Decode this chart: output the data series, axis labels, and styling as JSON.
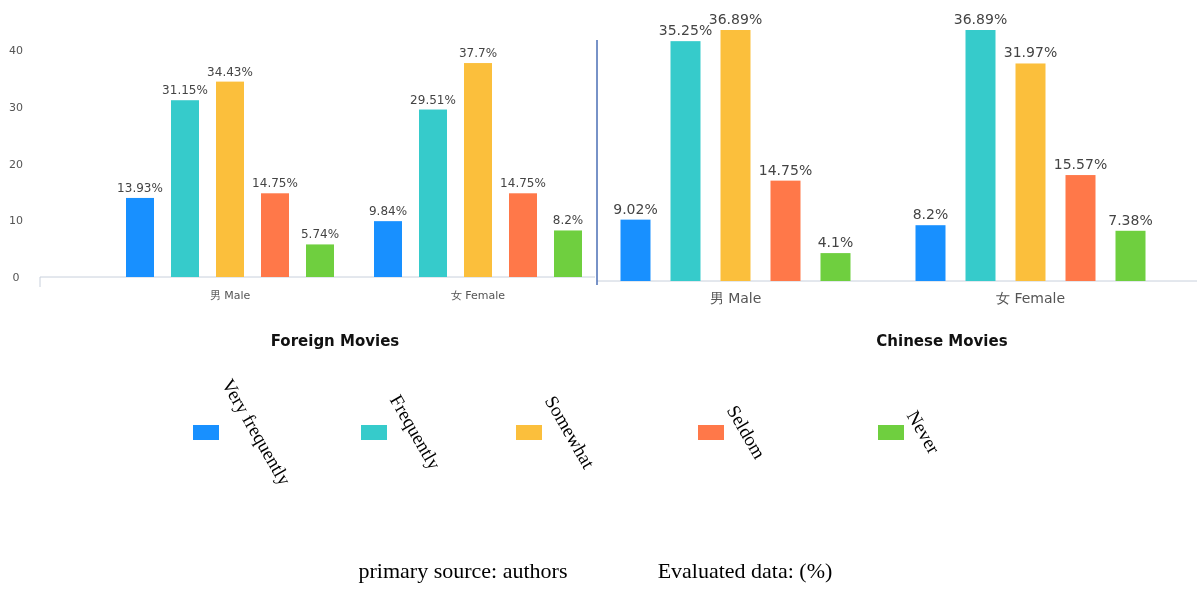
{
  "chart_data": [
    {
      "type": "bar",
      "title": "Foreign Movies",
      "categories": [
        "男 Male",
        "女 Female"
      ],
      "ylim": [
        0,
        40
      ],
      "yticks": [
        0,
        10,
        20,
        30,
        40
      ],
      "grid": false,
      "legend": "bottom",
      "series": [
        {
          "name": "Very frequently",
          "color": "#1890ff",
          "values": [
            13.93,
            9.84
          ],
          "value_labels": [
            "13.93%",
            "9.84%"
          ]
        },
        {
          "name": "Frequently",
          "color": "#36cbcb",
          "values": [
            31.15,
            29.51
          ],
          "value_labels": [
            "31.15%",
            "29.51%"
          ]
        },
        {
          "name": "Somewhat",
          "color": "#fbbf3c",
          "values": [
            34.43,
            37.7
          ],
          "value_labels": [
            "34.43%",
            "37.7%"
          ]
        },
        {
          "name": "Seldom",
          "color": "#ff7849",
          "values": [
            14.75,
            14.75
          ],
          "value_labels": [
            "14.75%",
            "14.75%"
          ]
        },
        {
          "name": "Never",
          "color": "#6fcf3f",
          "values": [
            5.74,
            8.2
          ],
          "value_labels": [
            "5.74%",
            "8.2%"
          ]
        }
      ]
    },
    {
      "type": "bar",
      "title": "Chinese Movies",
      "categories": [
        "男 Male",
        "女 Female"
      ],
      "tick_labels": "x",
      "annotations": [
        "primary source: authors",
        "Evaluated data: (%)"
      ],
      "series": [
        {
          "color": "#1890ff",
          "values": [
            9.02,
            8.2
          ],
          "value_labels": [
            "9.02%",
            "8.2%"
          ]
        },
        {
          "color": "#36cbcb",
          "values": [
            35.25,
            36.89
          ],
          "value_labels": [
            "35.25%",
            "36.89%"
          ]
        },
        {
          "color": "#fbbf3c",
          "values": [
            36.89,
            31.97
          ],
          "value_labels": [
            "36.89%",
            "31.97%"
          ]
        },
        {
          "color": "#ff7849",
          "values": [
            14.75,
            15.57
          ],
          "value_labels": [
            "14.75%",
            "15.57%"
          ]
        },
        {
          "color": "#6fcf3f",
          "values": [
            4.1,
            7.38
          ],
          "value_labels": [
            "4.1%",
            "7.38%"
          ]
        }
      ]
    }
  ]
}
